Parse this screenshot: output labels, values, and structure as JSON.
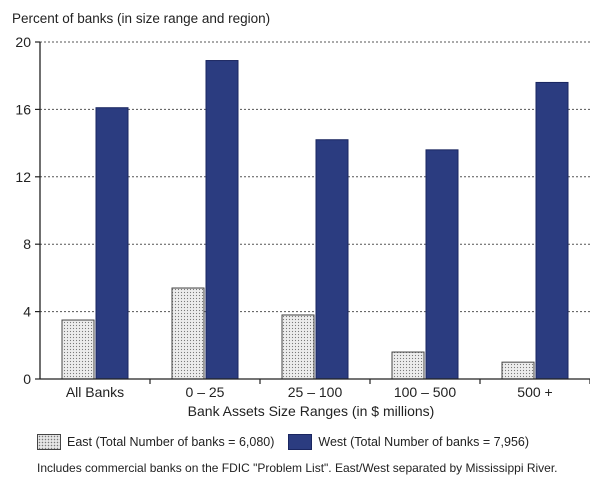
{
  "chart_data": {
    "type": "bar",
    "title": "",
    "ylabel": "Percent of banks (in size range and region)",
    "xlabel": "Bank Assets Size Ranges (in $ millions)",
    "categories": [
      "All Banks",
      "0 – 25",
      "25 – 100",
      "100 – 500",
      "500 +"
    ],
    "ylim": [
      0,
      20
    ],
    "yticks": [
      "0",
      "4",
      "8",
      "12",
      "16",
      "20"
    ],
    "grid": true,
    "series": [
      {
        "name": "East (Total Number of banks = 6,080)",
        "values": [
          3.5,
          5.4,
          3.8,
          1.6,
          1.0
        ],
        "color": "#e6e6e6"
      },
      {
        "name": "West (Total Number of banks = 7,956)",
        "values": [
          16.1,
          18.9,
          14.2,
          13.6,
          17.6
        ],
        "color": "#2b3c80"
      }
    ]
  },
  "note": "Includes commercial banks on the FDIC \"Problem List\". East/West separated by Mississippi River."
}
